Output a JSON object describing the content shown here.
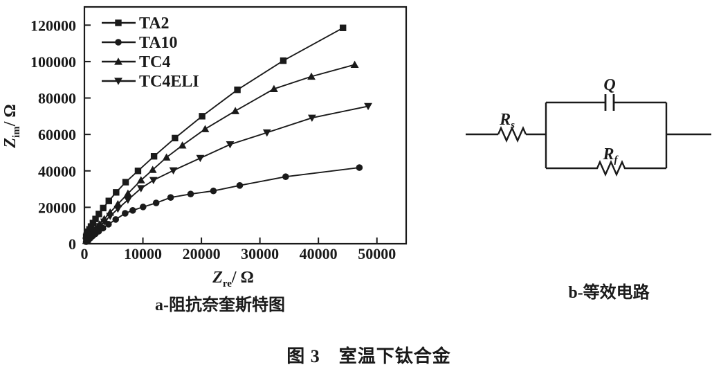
{
  "figure": {
    "caption": "图 3　室温下钛合金",
    "caption_a": "a-阻抗奈奎斯特图",
    "caption_b": "b-等效电路"
  },
  "colors": {
    "ink": "#1a1a1a",
    "background": "#ffffff"
  },
  "chart_data": {
    "type": "scatter",
    "title": "",
    "xlabel": {
      "base": "Z",
      "sub": "re",
      "unit": "/ Ω"
    },
    "ylabel": {
      "base": "Z",
      "sub": "im",
      "unit": "/ Ω"
    },
    "xlim": [
      0,
      55000
    ],
    "ylim": [
      0,
      130000
    ],
    "x_ticks": [
      0,
      10000,
      20000,
      30000,
      40000,
      50000
    ],
    "y_ticks": [
      0,
      20000,
      40000,
      60000,
      80000,
      100000,
      120000
    ],
    "grid": false,
    "legend_position": "top-left",
    "series": [
      {
        "name": "TA2",
        "marker": "square",
        "x": [
          305,
          395,
          510,
          665,
          865,
          1125,
          1460,
          1900,
          2470,
          3210,
          4170,
          5420,
          7045,
          9160,
          11900,
          15480,
          20120,
          26150,
          34000,
          44200
        ],
        "y": [
          3810,
          4570,
          5480,
          6570,
          7880,
          9450,
          11350,
          13600,
          16300,
          19600,
          23500,
          28200,
          33800,
          40000,
          48000,
          58000,
          70000,
          84500,
          100500,
          118500
        ]
      },
      {
        "name": "TA10",
        "marker": "circle",
        "x": [
          300,
          390,
          505,
          660,
          855,
          1110,
          1440,
          1875,
          2440,
          3170,
          4120,
          5350,
          6960,
          8260,
          10030,
          12260,
          14740,
          18160,
          22050,
          26550,
          34400,
          47000
        ],
        "y": [
          1155,
          1440,
          1800,
          2255,
          2810,
          3510,
          4380,
          5480,
          6850,
          8560,
          10700,
          13340,
          16700,
          18300,
          20200,
          22400,
          25400,
          27300,
          29000,
          32000,
          36800,
          41800
        ]
      },
      {
        "name": "TC4",
        "marker": "triangle-up",
        "x": [
          320,
          415,
          540,
          705,
          915,
          1190,
          1545,
          2010,
          2610,
          3390,
          4400,
          5720,
          7440,
          9670,
          11670,
          14030,
          16750,
          20640,
          25800,
          32400,
          38800,
          46200
        ],
        "y": [
          1630,
          2060,
          2610,
          3300,
          4180,
          5290,
          6700,
          8480,
          10740,
          13590,
          17200,
          21780,
          27570,
          34900,
          40600,
          47400,
          54000,
          63000,
          72900,
          85000,
          91800,
          98300
        ]
      },
      {
        "name": "TC4ELI",
        "marker": "triangle-down",
        "x": [
          320,
          415,
          540,
          705,
          915,
          1190,
          1545,
          2010,
          2610,
          3390,
          4400,
          5720,
          7440,
          9670,
          11800,
          15200,
          19800,
          24900,
          31200,
          38900,
          48500
        ],
        "y": [
          1510,
          1905,
          2400,
          3020,
          3800,
          4790,
          6040,
          7610,
          9580,
          12070,
          15200,
          19150,
          24100,
          30400,
          34900,
          40200,
          47000,
          54500,
          61000,
          69100,
          75500
        ]
      }
    ]
  },
  "circuit": {
    "rs": {
      "base": "R",
      "sub": "s"
    },
    "q": {
      "base": "Q",
      "sub": ""
    },
    "rf": {
      "base": "R",
      "sub": "f"
    }
  }
}
